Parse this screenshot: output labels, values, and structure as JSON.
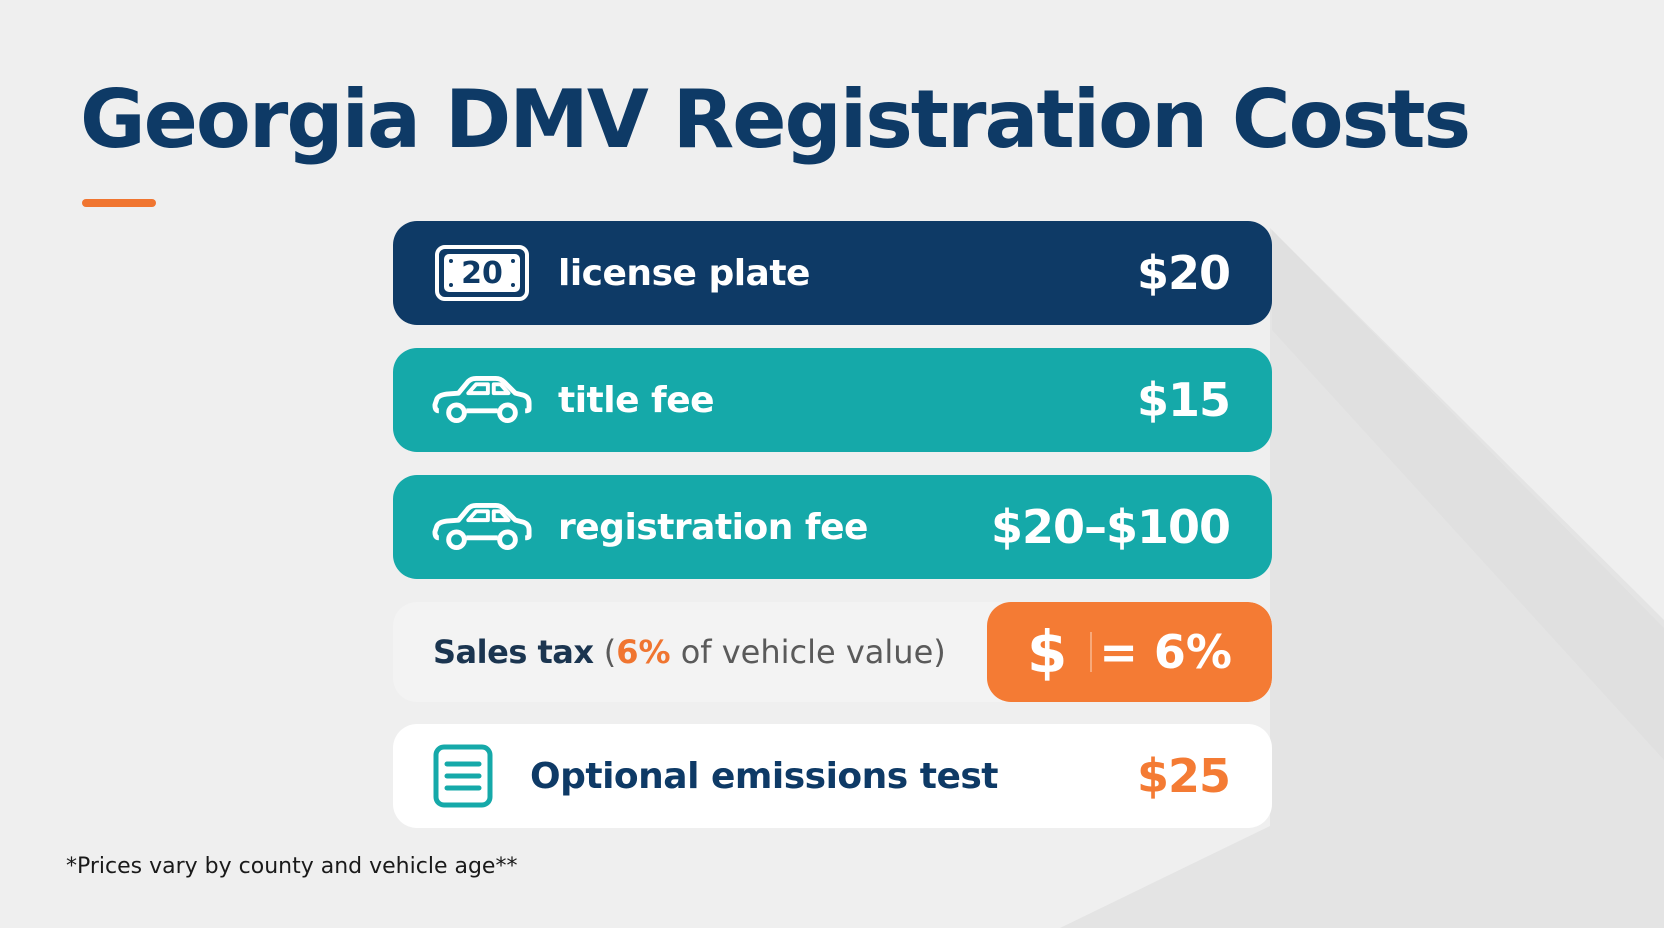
{
  "title": "Georgia DMV Registration Costs",
  "rows": [
    {
      "icon": "license-plate-icon",
      "plate_number": "20",
      "label": "license plate",
      "value": "$20"
    },
    {
      "icon": "car-icon",
      "label": "title fee",
      "value": "$15"
    },
    {
      "icon": "car-icon",
      "label": "registration fee",
      "value": "$20–$100"
    }
  ],
  "sales_tax": {
    "label": "Sales tax",
    "open_paren": " (",
    "percent": "6%",
    "suffix": " of vehicle value)",
    "badge_symbol": "$",
    "badge_value": "= 6%"
  },
  "emissions": {
    "icon": "document-list-icon",
    "label": "Optional emissions test",
    "value": "$25"
  },
  "footnote": "*Prices vary by county and vehicle age**",
  "colors": {
    "navy": "#0e3a66",
    "teal": "#15a9a9",
    "orange": "#f47b34",
    "background": "#efefef"
  }
}
